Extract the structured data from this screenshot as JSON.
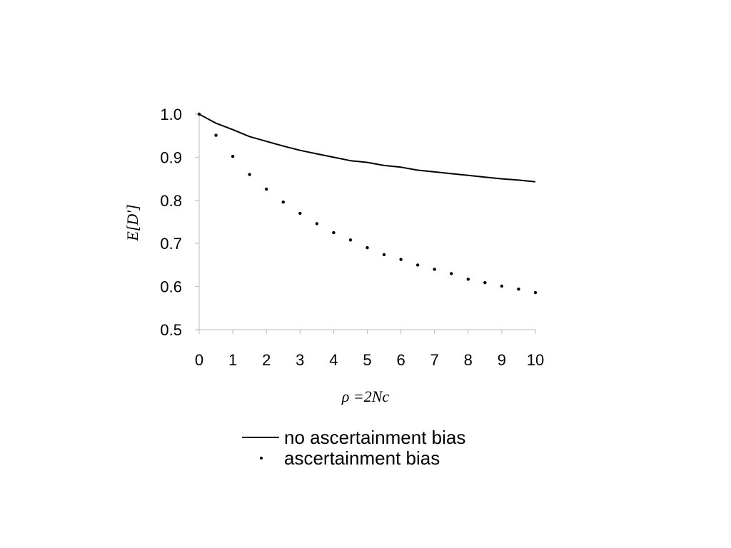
{
  "chart_data": {
    "type": "line",
    "title": "",
    "xlabel": "ρ =2Nc",
    "ylabel": "E[D']",
    "xlim": [
      0,
      10
    ],
    "ylim": [
      0.5,
      1.0
    ],
    "x_ticks": [
      "0",
      "1",
      "2",
      "3",
      "4",
      "5",
      "6",
      "7",
      "8",
      "9",
      "10"
    ],
    "y_ticks": [
      "0.5",
      "0.6",
      "0.7",
      "0.8",
      "0.9",
      "1.0"
    ],
    "grid": false,
    "legend_position": "bottom",
    "series": [
      {
        "name": "no ascertainment bias",
        "style": "solid",
        "color": "#000000",
        "x": [
          0,
          0.5,
          1,
          1.5,
          2,
          2.5,
          3,
          3.5,
          4,
          4.5,
          5,
          5.5,
          6,
          6.5,
          7,
          7.5,
          8,
          8.5,
          9,
          9.5,
          10
        ],
        "y": [
          1.0,
          0.979,
          0.964,
          0.948,
          0.937,
          0.926,
          0.916,
          0.908,
          0.9,
          0.892,
          0.888,
          0.881,
          0.877,
          0.87,
          0.866,
          0.862,
          0.858,
          0.854,
          0.85,
          0.847,
          0.843
        ]
      },
      {
        "name": "ascertainment bias",
        "style": "dotted",
        "color": "#000000",
        "x": [
          0,
          0.5,
          1,
          1.5,
          2,
          2.5,
          3,
          3.5,
          4,
          4.5,
          5,
          5.5,
          6,
          6.5,
          7,
          7.5,
          8,
          8.5,
          9,
          9.5,
          10
        ],
        "y": [
          1.0,
          0.951,
          0.902,
          0.86,
          0.826,
          0.796,
          0.77,
          0.746,
          0.725,
          0.708,
          0.69,
          0.674,
          0.663,
          0.65,
          0.64,
          0.63,
          0.617,
          0.609,
          0.601,
          0.594,
          0.586
        ]
      }
    ]
  }
}
